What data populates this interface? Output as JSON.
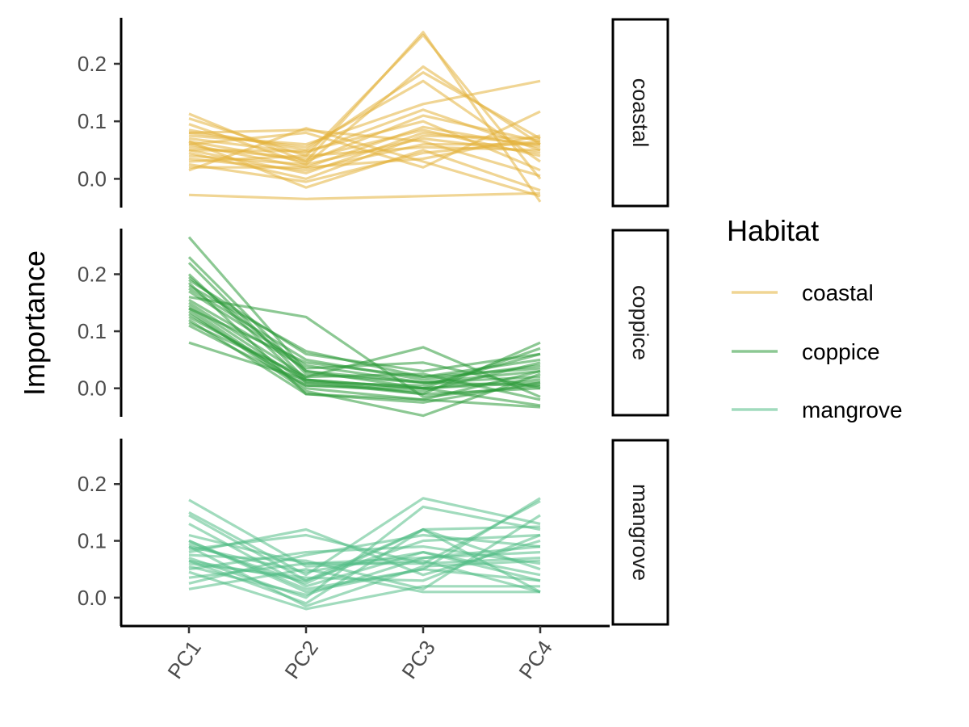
{
  "chart_data": {
    "type": "line",
    "ylabel": "Importance",
    "xlabel": "",
    "categories": [
      "PC1",
      "PC2",
      "PC3",
      "PC4"
    ],
    "ylim": [
      -0.05,
      0.28
    ],
    "y_ticks": [
      "0.0",
      "0.1",
      "0.2"
    ],
    "y_tick_values": [
      0.0,
      0.1,
      0.2
    ],
    "legend": {
      "title": "Habitat",
      "position": "right",
      "entries": [
        "coastal",
        "coppice",
        "mangrove"
      ]
    },
    "colors": {
      "coastal": "#E3B23C",
      "coppice": "#2E9A3A",
      "mangrove": "#54BE87"
    },
    "facets": [
      {
        "label": "coastal",
        "series": [
          [
            0.113,
            0.03,
            0.255,
            -0.04
          ],
          [
            0.105,
            0.04,
            0.25,
            0.0
          ],
          [
            0.095,
            0.025,
            0.195,
            0.06
          ],
          [
            0.085,
            0.05,
            0.185,
            0.07
          ],
          [
            0.08,
            0.055,
            0.17,
            0.03
          ],
          [
            0.075,
            0.06,
            0.13,
            0.17
          ],
          [
            0.07,
            0.045,
            0.12,
            0.05
          ],
          [
            0.065,
            0.03,
            0.11,
            0.065
          ],
          [
            0.06,
            0.02,
            0.09,
            0.055
          ],
          [
            0.055,
            0.035,
            0.085,
            0.04
          ],
          [
            0.05,
            0.01,
            0.08,
            0.06
          ],
          [
            0.045,
            0.0,
            0.075,
            0.07
          ],
          [
            0.04,
            0.025,
            0.07,
            0.045
          ],
          [
            0.035,
            0.015,
            0.06,
            0.06
          ],
          [
            0.03,
            0.04,
            0.055,
            0.05
          ],
          [
            0.025,
            -0.005,
            0.045,
            0.065
          ],
          [
            0.02,
            0.02,
            0.035,
            0.075
          ],
          [
            0.015,
            0.088,
            0.03,
            -0.03
          ],
          [
            0.06,
            0.08,
            0.02,
            0.117
          ],
          [
            0.08,
            0.085,
            0.065,
            0.005
          ],
          [
            0.065,
            -0.015,
            0.05,
            -0.02
          ],
          [
            0.05,
            0.048,
            0.1,
            0.015
          ],
          [
            -0.028,
            -0.035,
            -0.03,
            -0.025
          ]
        ]
      },
      {
        "label": "coppice",
        "series": [
          [
            0.265,
            0.03,
            0.0,
            0.01
          ],
          [
            0.23,
            0.025,
            0.01,
            0.03
          ],
          [
            0.22,
            0.015,
            0.0,
            0.07
          ],
          [
            0.2,
            0.01,
            -0.01,
            0.08
          ],
          [
            0.19,
            0.06,
            0.03,
            0.06
          ],
          [
            0.18,
            0.065,
            0.02,
            0.05
          ],
          [
            0.175,
            0.05,
            0.015,
            0.04
          ],
          [
            0.17,
            0.04,
            0.01,
            0.02
          ],
          [
            0.16,
            0.125,
            -0.015,
            0.005
          ],
          [
            0.155,
            0.035,
            0.045,
            0.0
          ],
          [
            0.15,
            0.02,
            0.072,
            -0.015
          ],
          [
            0.145,
            0.01,
            0.005,
            0.06
          ],
          [
            0.14,
            0.0,
            -0.02,
            0.03
          ],
          [
            0.135,
            -0.005,
            -0.048,
            0.025
          ],
          [
            0.13,
            0.005,
            -0.005,
            0.045
          ],
          [
            0.125,
            0.015,
            0.0,
            -0.03
          ],
          [
            0.12,
            -0.01,
            -0.025,
            0.01
          ],
          [
            0.115,
            0.02,
            0.025,
            -0.02
          ],
          [
            0.11,
            0.005,
            0.0,
            0.015
          ],
          [
            0.08,
            0.015,
            -0.01,
            0.0
          ],
          [
            0.185,
            -0.01,
            -0.02,
            -0.033
          ],
          [
            0.195,
            0.03,
            0.01,
            0.005
          ],
          [
            0.14,
            0.045,
            0.02,
            0.035
          ]
        ]
      },
      {
        "label": "mangrove",
        "series": [
          [
            0.172,
            0.055,
            0.065,
            0.01
          ],
          [
            0.15,
            0.04,
            0.175,
            0.13
          ],
          [
            0.145,
            0.03,
            0.12,
            0.01
          ],
          [
            0.13,
            0.02,
            0.08,
            0.04
          ],
          [
            0.11,
            0.06,
            0.06,
            0.17
          ],
          [
            0.1,
            0.015,
            0.05,
            0.175
          ],
          [
            0.095,
            0.025,
            0.12,
            0.05
          ],
          [
            0.09,
            0.045,
            0.08,
            0.03
          ],
          [
            0.085,
            0.11,
            0.06,
            0.07
          ],
          [
            0.08,
            0.12,
            0.04,
            0.1
          ],
          [
            0.075,
            0.065,
            0.015,
            0.145
          ],
          [
            0.07,
            0.0,
            0.16,
            0.12
          ],
          [
            0.065,
            -0.01,
            0.12,
            0.125
          ],
          [
            0.06,
            0.035,
            0.03,
            0.11
          ],
          [
            0.055,
            0.005,
            0.07,
            0.09
          ],
          [
            0.05,
            0.08,
            0.09,
            0.06
          ],
          [
            0.045,
            -0.02,
            0.02,
            0.02
          ],
          [
            0.035,
            0.06,
            0.07,
            0.08
          ],
          [
            0.025,
            0.075,
            0.11,
            0.09
          ],
          [
            0.015,
            0.05,
            0.01,
            0.01
          ],
          [
            0.1,
            0.01,
            0.05,
            0.03
          ],
          [
            0.065,
            0.03,
            0.1,
            0.11
          ],
          [
            0.09,
            -0.015,
            0.055,
            0.065
          ]
        ]
      }
    ]
  }
}
